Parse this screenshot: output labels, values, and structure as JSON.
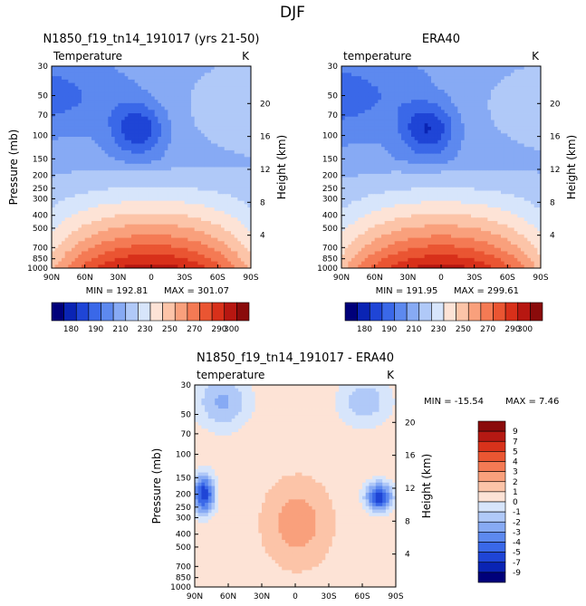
{
  "figure_title": "DJF",
  "chart_data": [
    {
      "type": "heatmap",
      "title": "N1850_f19_tn14_191017 (yrs 21-50)",
      "variable_label": "Temperature",
      "units_label": "K",
      "xlabel": "",
      "ylabel": "Pressure (mb)",
      "ylabel_right": "Height (km)",
      "x_ticks": [
        "90N",
        "60N",
        "30N",
        "0",
        "30S",
        "60S",
        "90S"
      ],
      "y_ticks": [
        "30",
        "50",
        "70",
        "100",
        "150",
        "200",
        "250",
        "300",
        "400",
        "500",
        "700",
        "850",
        "1000"
      ],
      "height_ticks": [
        "20",
        "16",
        "12",
        "8",
        "4"
      ],
      "min_text": "MIN = 192.81",
      "max_text": "MAX = 301.07",
      "min": 192.81,
      "max": 301.07,
      "colorbar_labels": [
        "180",
        "190",
        "210",
        "230",
        "250",
        "270",
        "290",
        "300"
      ]
    },
    {
      "type": "heatmap",
      "title": "ERA40",
      "variable_label": "temperature",
      "units_label": "K",
      "xlabel": "",
      "ylabel": "",
      "ylabel_right": "Height (km)",
      "x_ticks": [
        "90N",
        "60N",
        "30N",
        "0",
        "30S",
        "60S",
        "90S"
      ],
      "y_ticks": [
        "30",
        "50",
        "70",
        "100",
        "150",
        "200",
        "250",
        "300",
        "400",
        "500",
        "700",
        "850",
        "1000"
      ],
      "height_ticks": [
        "20",
        "16",
        "12",
        "8",
        "4"
      ],
      "min_text": "MIN = 191.95",
      "max_text": "MAX = 299.61",
      "min": 191.95,
      "max": 299.61,
      "colorbar_labels": [
        "180",
        "190",
        "210",
        "230",
        "250",
        "270",
        "290",
        "300"
      ]
    },
    {
      "type": "heatmap",
      "title": "N1850_f19_tn14_191017 - ERA40",
      "variable_label": "temperature",
      "units_label": "K",
      "xlabel": "",
      "ylabel": "Pressure (mb)",
      "ylabel_right": "Height (km)",
      "x_ticks": [
        "90N",
        "60N",
        "30N",
        "0",
        "30S",
        "60S",
        "90S"
      ],
      "y_ticks": [
        "30",
        "50",
        "70",
        "100",
        "150",
        "200",
        "250",
        "300",
        "400",
        "500",
        "700",
        "850",
        "1000"
      ],
      "height_ticks": [
        "20",
        "16",
        "12",
        "8",
        "4"
      ],
      "min_text": "MIN = -15.54",
      "max_text": "MAX =    7.46",
      "min": -15.54,
      "max": 7.46,
      "colorbar_labels": [
        "9",
        "7",
        "5",
        "4",
        "3",
        "2",
        "1",
        "0",
        "-1",
        "-2",
        "-3",
        "-4",
        "-5",
        "-7",
        "-9"
      ]
    }
  ],
  "colors": {
    "abs_scale": [
      "#00007a",
      "#0a24b4",
      "#1f45d6",
      "#3a68e8",
      "#5d89ef",
      "#87aaf4",
      "#b0c9f8",
      "#d7e5fb",
      "#fde3d6",
      "#fcc4a8",
      "#f9a07c",
      "#f47a54",
      "#ea5532",
      "#d8301a",
      "#b71711",
      "#8a0b0b"
    ],
    "diff_scale": [
      "#8a0b0b",
      "#b51913",
      "#d8321b",
      "#ea5632",
      "#f47a54",
      "#f9a07c",
      "#fcc4a8",
      "#fde3d6",
      "#d7e5fb",
      "#b0c9f8",
      "#87aaf4",
      "#5d89ef",
      "#3a68e8",
      "#1f45d6",
      "#0a24b4",
      "#00007a"
    ]
  }
}
